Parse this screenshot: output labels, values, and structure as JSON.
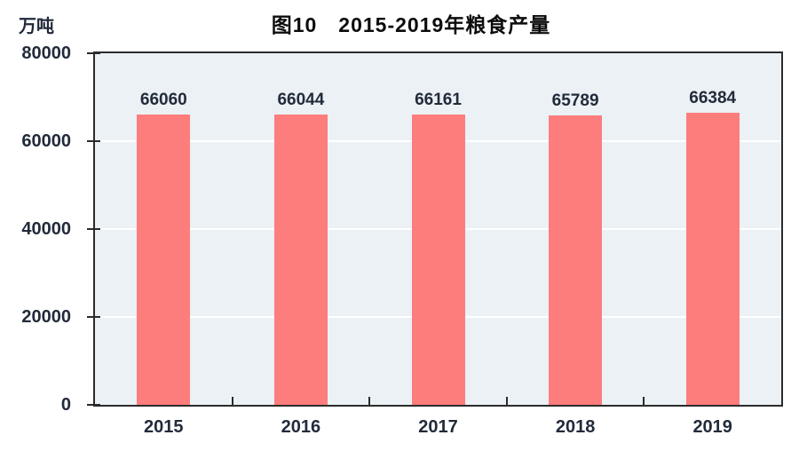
{
  "chart_data": {
    "type": "bar",
    "title": "图10　2015-2019年粮食产量",
    "ylabel_unit": "万吨",
    "categories": [
      "2015",
      "2016",
      "2017",
      "2018",
      "2019"
    ],
    "values": [
      66060,
      66044,
      66161,
      65789,
      66384
    ],
    "data_labels": [
      "66060",
      "66044",
      "66161",
      "65789",
      "66384"
    ],
    "ylim": [
      0,
      80000
    ],
    "yticks": [
      0,
      20000,
      40000,
      60000,
      80000
    ],
    "grid": "horizontal white gridlines at interior yticks",
    "legend": "none",
    "bar_color": "#FC7D7C",
    "plot_background": "#EBF1F5",
    "frame_color": "#2B2B2B",
    "gridline_color": "#FFFFFF",
    "text_color": "#222B3A"
  }
}
